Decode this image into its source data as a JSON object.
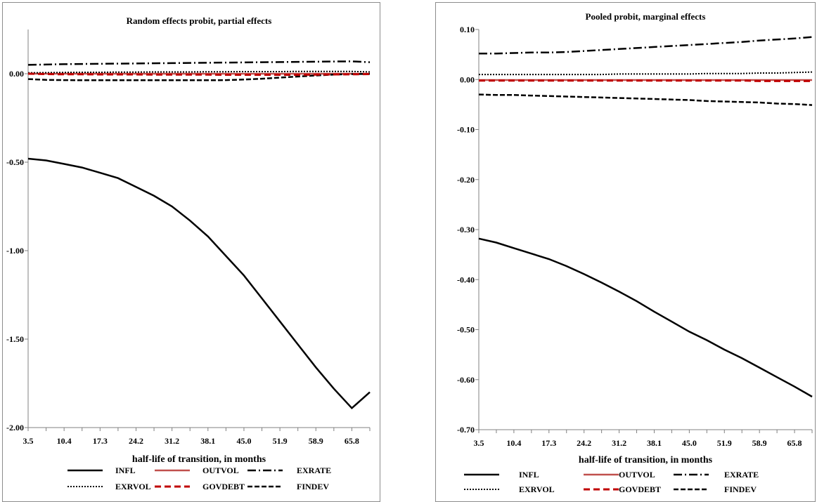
{
  "charts": [
    {
      "title": "Random effects probit, partial effects",
      "xlabel": "half-life of transition, in months",
      "yticks": [
        "0.00",
        "-0.50",
        "-1.00",
        "-1.50",
        "-2.00"
      ],
      "xticks": [
        "3.5",
        "10.4",
        "17.3",
        "24.2",
        "31.2",
        "38.1",
        "45.0",
        "51.9",
        "58.9",
        "65.8"
      ],
      "legend": [
        "INFL",
        "OUTVOL",
        "EXRATE",
        "EXRVOL",
        "GOVDEBT",
        "FINDEV"
      ]
    },
    {
      "title": "Pooled probit, marginal effects",
      "xlabel": "half-life of transition, in months",
      "yticks": [
        "0.10",
        "0.00",
        "-0.10",
        "-0.20",
        "-0.30",
        "-0.40",
        "-0.50",
        "-0.60",
        "-0.70"
      ],
      "xticks": [
        "3.5",
        "10.4",
        "17.3",
        "24.2",
        "31.2",
        "38.1",
        "45.0",
        "51.9",
        "58.9",
        "65.8"
      ],
      "legend": [
        "INFL",
        "OUTVOL",
        "EXRATE",
        "EXRVOL",
        "GOVDEBT",
        "FINDEV"
      ]
    }
  ],
  "chart_data": [
    {
      "type": "line",
      "title": "Random effects probit, partial effects",
      "xlabel": "half-life of transition, in months",
      "ylabel": "",
      "ylim": [
        -2.0,
        0.25
      ],
      "yticks": [
        0.0,
        -0.5,
        -1.0,
        -1.5,
        -2.0
      ],
      "x": [
        3.5,
        6.95,
        10.4,
        13.85,
        17.3,
        20.75,
        24.2,
        27.7,
        31.2,
        34.65,
        38.1,
        41.55,
        45.0,
        48.45,
        51.9,
        55.4,
        58.9,
        62.35,
        65.8,
        69.25
      ],
      "series": [
        {
          "name": "INFL",
          "values": [
            -0.48,
            -0.49,
            -0.51,
            -0.53,
            -0.56,
            -0.59,
            -0.64,
            -0.69,
            -0.75,
            -0.83,
            -0.92,
            -1.03,
            -1.14,
            -1.27,
            -1.4,
            -1.53,
            -1.66,
            -1.78,
            -1.89,
            -1.8
          ]
        },
        {
          "name": "OUTVOL",
          "values": [
            0.0,
            0.0,
            0.0,
            0.0,
            0.0,
            0.0,
            0.0,
            0.0,
            0.0,
            0.0,
            0.0,
            0.0,
            0.0,
            0.0,
            0.0,
            0.0,
            0.0,
            0.0,
            0.0,
            0.0
          ]
        },
        {
          "name": "EXRATE",
          "values": [
            0.05,
            0.052,
            0.054,
            0.055,
            0.056,
            0.057,
            0.058,
            0.059,
            0.06,
            0.061,
            0.062,
            0.063,
            0.064,
            0.065,
            0.066,
            0.067,
            0.068,
            0.069,
            0.07,
            0.065
          ]
        },
        {
          "name": "EXRVOL",
          "values": [
            0.005,
            0.006,
            0.007,
            0.008,
            0.008,
            0.009,
            0.009,
            0.01,
            0.01,
            0.01,
            0.011,
            0.011,
            0.012,
            0.012,
            0.012,
            0.013,
            0.013,
            0.013,
            0.013,
            0.01
          ]
        },
        {
          "name": "GOVDEBT",
          "values": [
            0.0,
            -0.002,
            -0.003,
            -0.003,
            -0.004,
            -0.004,
            -0.004,
            -0.005,
            -0.005,
            -0.005,
            -0.005,
            -0.006,
            -0.006,
            -0.006,
            -0.006,
            -0.006,
            -0.005,
            -0.004,
            -0.003,
            -0.002
          ]
        },
        {
          "name": "FINDEV",
          "values": [
            -0.03,
            -0.035,
            -0.036,
            -0.037,
            -0.037,
            -0.037,
            -0.037,
            -0.037,
            -0.037,
            -0.037,
            -0.037,
            -0.036,
            -0.033,
            -0.028,
            -0.022,
            -0.016,
            -0.01,
            -0.005,
            -0.002,
            -0.001
          ]
        }
      ]
    },
    {
      "type": "line",
      "title": "Pooled probit, marginal effects",
      "xlabel": "half-life of transition, in months",
      "ylabel": "",
      "ylim": [
        -0.7,
        0.1
      ],
      "yticks": [
        0.1,
        0.0,
        -0.1,
        -0.2,
        -0.3,
        -0.4,
        -0.5,
        -0.6,
        -0.7
      ],
      "x": [
        3.5,
        6.95,
        10.4,
        13.85,
        17.3,
        20.75,
        24.2,
        27.7,
        31.2,
        34.65,
        38.1,
        41.55,
        45.0,
        48.45,
        51.9,
        55.4,
        58.9,
        62.35,
        65.8,
        69.25
      ],
      "series": [
        {
          "name": "INFL",
          "values": [
            -0.318,
            -0.326,
            -0.337,
            -0.348,
            -0.359,
            -0.373,
            -0.389,
            -0.406,
            -0.424,
            -0.443,
            -0.464,
            -0.484,
            -0.504,
            -0.521,
            -0.54,
            -0.557,
            -0.576,
            -0.595,
            -0.614,
            -0.634
          ]
        },
        {
          "name": "OUTVOL",
          "values": [
            -0.001,
            -0.001,
            -0.001,
            -0.001,
            -0.001,
            -0.001,
            -0.001,
            -0.001,
            -0.001,
            -0.001,
            -0.001,
            -0.001,
            -0.001,
            -0.001,
            -0.001,
            -0.001,
            -0.001,
            -0.001,
            -0.001,
            -0.001
          ]
        },
        {
          "name": "EXRATE",
          "values": [
            0.052,
            0.052,
            0.053,
            0.054,
            0.054,
            0.055,
            0.057,
            0.059,
            0.061,
            0.063,
            0.065,
            0.067,
            0.069,
            0.071,
            0.073,
            0.075,
            0.078,
            0.08,
            0.082,
            0.085
          ]
        },
        {
          "name": "EXRVOL",
          "values": [
            0.01,
            0.01,
            0.01,
            0.01,
            0.01,
            0.01,
            0.01,
            0.01,
            0.011,
            0.011,
            0.011,
            0.011,
            0.011,
            0.012,
            0.012,
            0.012,
            0.013,
            0.013,
            0.014,
            0.015
          ]
        },
        {
          "name": "GOVDEBT",
          "values": [
            -0.002,
            -0.002,
            -0.002,
            -0.002,
            -0.002,
            -0.002,
            -0.002,
            -0.002,
            -0.002,
            -0.002,
            -0.002,
            -0.002,
            -0.002,
            -0.002,
            -0.002,
            -0.002,
            -0.003,
            -0.003,
            -0.003,
            -0.003
          ]
        },
        {
          "name": "FINDEV",
          "values": [
            -0.03,
            -0.031,
            -0.031,
            -0.032,
            -0.033,
            -0.034,
            -0.035,
            -0.036,
            -0.037,
            -0.038,
            -0.039,
            -0.04,
            -0.041,
            -0.043,
            -0.044,
            -0.045,
            -0.046,
            -0.048,
            -0.049,
            -0.051
          ]
        }
      ]
    }
  ],
  "styles": {
    "INFL": {
      "color": "#000000",
      "dash": "",
      "width": 2.5
    },
    "OUTVOL": {
      "color": "#c0504d",
      "dash": "",
      "width": 2.5
    },
    "EXRATE": {
      "color": "#000000",
      "dash": "12 4 2 4",
      "width": 2.5
    },
    "EXRVOL": {
      "color": "#000000",
      "dash": "2 2",
      "width": 2
    },
    "GOVDEBT": {
      "color": "#c00000",
      "dash": "9 5",
      "width": 3
    },
    "FINDEV": {
      "color": "#000000",
      "dash": "7 3",
      "width": 2.5
    }
  }
}
